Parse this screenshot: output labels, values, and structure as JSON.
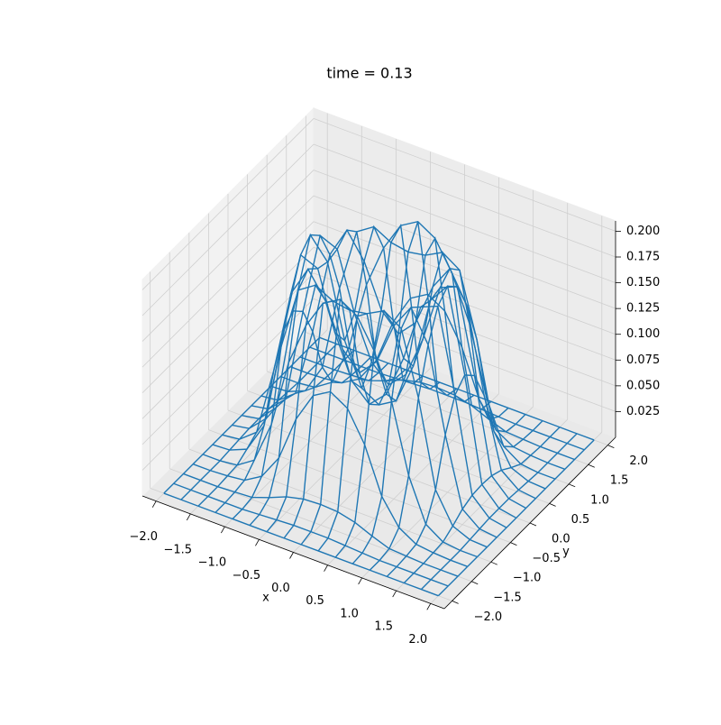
{
  "chart_data": {
    "type": "wireframe3d",
    "title": "time = 0.13",
    "xlabel": "x",
    "ylabel": "y",
    "color": "#1f77b4",
    "xlim": [
      -2.2,
      2.2
    ],
    "ylim": [
      -2.2,
      2.2
    ],
    "zlim": [
      0,
      0.21
    ],
    "xticks": [
      {
        "value": -2,
        "label": "−2.0"
      },
      {
        "value": -1.5,
        "label": "−1.5"
      },
      {
        "value": -1,
        "label": "−1.0"
      },
      {
        "value": -0.5,
        "label": "−0.5"
      },
      {
        "value": 0,
        "label": "0.0"
      },
      {
        "value": 0.5,
        "label": "0.5"
      },
      {
        "value": 1,
        "label": "1.0"
      },
      {
        "value": 1.5,
        "label": "1.5"
      },
      {
        "value": 2,
        "label": "2.0"
      }
    ],
    "yticks": [
      {
        "value": -2,
        "label": "−2.0"
      },
      {
        "value": -1.5,
        "label": "−1.5"
      },
      {
        "value": -1,
        "label": "−1.0"
      },
      {
        "value": -0.5,
        "label": "−0.5"
      },
      {
        "value": 0,
        "label": "0.0"
      },
      {
        "value": 0.5,
        "label": "0.5"
      },
      {
        "value": 1,
        "label": "1.0"
      },
      {
        "value": 1.5,
        "label": "1.5"
      },
      {
        "value": 2,
        "label": "2.0"
      }
    ],
    "zticks": [
      0.025,
      {
        "value": 0.05,
        "label": "0.050"
      },
      0.075,
      {
        "value": 0.1,
        "label": "0.100"
      },
      0.125,
      {
        "value": 0.15,
        "label": "0.150"
      },
      0.175,
      {
        "value": 0.2,
        "label": "0.200"
      }
    ],
    "grid": true,
    "x": [
      -2,
      -1.75,
      -1.5,
      -1.25,
      -1,
      -0.75,
      -0.5,
      -0.25,
      0,
      0.25,
      0.5,
      0.75,
      1,
      1.25,
      1.5,
      1.75,
      2
    ],
    "y": [
      -2,
      -1.75,
      -1.5,
      -1.25,
      -1,
      -0.75,
      -0.5,
      -0.25,
      0,
      0.25,
      0.5,
      0.75,
      1,
      1.25,
      1.5,
      1.75,
      2
    ],
    "z": [
      [
        0,
        0,
        0,
        0,
        0,
        0,
        0,
        0,
        0,
        0,
        0,
        0,
        0,
        0,
        0,
        0,
        0
      ],
      [
        0,
        0,
        0,
        0,
        0,
        0.001,
        0.002,
        0.003,
        0.003,
        0.003,
        0.002,
        0.001,
        0,
        0,
        0,
        0,
        0
      ],
      [
        0,
        0,
        0,
        0.001,
        0.002,
        0.008,
        0.015,
        0.019,
        0.02,
        0.019,
        0.015,
        0.008,
        0.002,
        0.001,
        0,
        0,
        0
      ],
      [
        0,
        0,
        0.001,
        0.003,
        0.013,
        0.037,
        0.081,
        0.11,
        0.12,
        0.11,
        0.081,
        0.037,
        0.013,
        0.003,
        0.001,
        0,
        0
      ],
      [
        0,
        0,
        0.002,
        0.013,
        0.054,
        0.12,
        0.162,
        0.19,
        0.2,
        0.19,
        0.162,
        0.12,
        0.054,
        0.013,
        0.002,
        0,
        0
      ],
      [
        0,
        0.001,
        0.008,
        0.037,
        0.12,
        0.181,
        0.192,
        0.183,
        0.18,
        0.183,
        0.192,
        0.181,
        0.12,
        0.037,
        0.008,
        0.001,
        0
      ],
      [
        0,
        0.002,
        0.015,
        0.081,
        0.162,
        0.192,
        0.168,
        0.127,
        0.11,
        0.127,
        0.168,
        0.192,
        0.162,
        0.081,
        0.015,
        0.002,
        0
      ],
      [
        0,
        0.003,
        0.019,
        0.11,
        0.19,
        0.183,
        0.127,
        0.086,
        0.07,
        0.086,
        0.127,
        0.183,
        0.19,
        0.11,
        0.019,
        0.003,
        0
      ],
      [
        0,
        0.003,
        0.02,
        0.12,
        0.2,
        0.18,
        0.11,
        0.07,
        0.06,
        0.07,
        0.11,
        0.18,
        0.2,
        0.12,
        0.02,
        0.003,
        0
      ],
      [
        0,
        0.003,
        0.019,
        0.11,
        0.19,
        0.183,
        0.127,
        0.086,
        0.07,
        0.086,
        0.127,
        0.183,
        0.19,
        0.11,
        0.019,
        0.003,
        0
      ],
      [
        0,
        0.002,
        0.015,
        0.081,
        0.162,
        0.192,
        0.168,
        0.127,
        0.11,
        0.127,
        0.168,
        0.192,
        0.162,
        0.081,
        0.015,
        0.002,
        0
      ],
      [
        0,
        0.001,
        0.008,
        0.037,
        0.12,
        0.181,
        0.192,
        0.183,
        0.18,
        0.183,
        0.192,
        0.181,
        0.12,
        0.037,
        0.008,
        0.001,
        0
      ],
      [
        0,
        0,
        0.002,
        0.013,
        0.054,
        0.12,
        0.162,
        0.19,
        0.2,
        0.19,
        0.162,
        0.12,
        0.054,
        0.013,
        0.002,
        0,
        0
      ],
      [
        0,
        0,
        0.001,
        0.003,
        0.013,
        0.037,
        0.081,
        0.11,
        0.12,
        0.11,
        0.081,
        0.037,
        0.013,
        0.003,
        0.001,
        0,
        0
      ],
      [
        0,
        0,
        0,
        0.001,
        0.002,
        0.008,
        0.015,
        0.019,
        0.02,
        0.019,
        0.015,
        0.008,
        0.002,
        0.001,
        0,
        0,
        0
      ],
      [
        0,
        0,
        0,
        0,
        0,
        0.001,
        0.002,
        0.003,
        0.003,
        0.003,
        0.002,
        0.001,
        0,
        0,
        0,
        0,
        0
      ],
      [
        0,
        0,
        0,
        0,
        0,
        0,
        0,
        0,
        0,
        0,
        0,
        0,
        0,
        0,
        0,
        0,
        0
      ]
    ]
  }
}
